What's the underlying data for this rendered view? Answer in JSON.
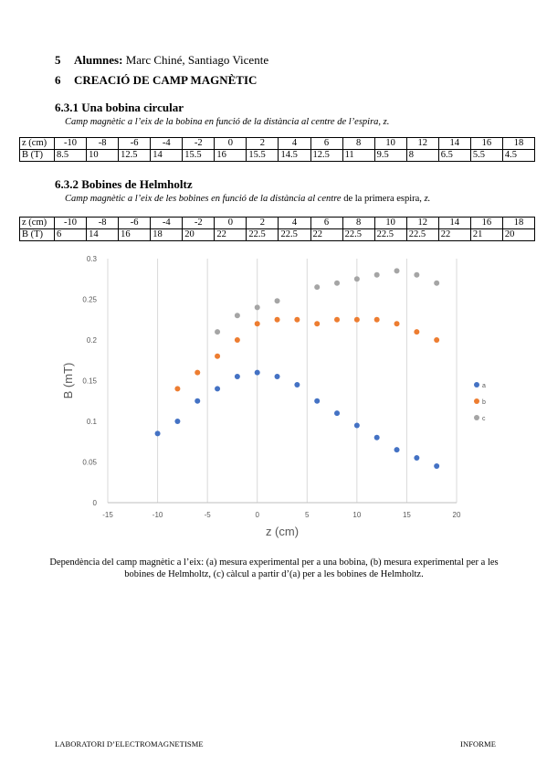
{
  "section5": {
    "number": "5",
    "label": "Alumnes:",
    "names": "Marc Chiné, Santiago Vicente"
  },
  "section6": {
    "number": "6",
    "title": "CREACIÓ DE CAMP MAGNÈTIC"
  },
  "sub1": {
    "heading": "6.3.1 Una bobina circular",
    "caption": "Camp magnètic a l’eix de la bobina en funció de la distància al centre de l’espira, z.",
    "table": {
      "row_labels": [
        "z (cm)",
        "B (T)"
      ],
      "z": [
        "-10",
        "-8",
        "-6",
        "-4",
        "-2",
        "0",
        "2",
        "4",
        "6",
        "8",
        "10",
        "12",
        "14",
        "16",
        "18"
      ],
      "B": [
        "8.5",
        "10",
        "12.5",
        "14",
        "15.5",
        "16",
        "15.5",
        "14.5",
        "12.5",
        "11",
        "9.5",
        "8",
        "6.5",
        "5.5",
        "4.5"
      ]
    }
  },
  "sub2": {
    "heading": "6.3.2 Bobines de Helmholtz",
    "caption_italic": "Camp magnètic a l’eix de les bobines en funció de la distància al centre",
    "caption_rest": " de la primera espira, ",
    "caption_z": "z.",
    "table": {
      "row_labels": [
        "z (cm)",
        "B (T)"
      ],
      "z": [
        "-10",
        "-8",
        "-6",
        "-4",
        "-2",
        "0",
        "2",
        "4",
        "6",
        "8",
        "10",
        "12",
        "14",
        "16",
        "18"
      ],
      "B": [
        "6",
        "14",
        "16",
        "18",
        "20",
        "22",
        "22.5",
        "22.5",
        "22",
        "22.5",
        "22.5",
        "22.5",
        "22",
        "21",
        "20"
      ]
    }
  },
  "chart_data": {
    "type": "scatter",
    "xlabel": "z (cm)",
    "ylabel": "B (mT)",
    "xlim": [
      -15,
      20
    ],
    "ylim": [
      0,
      0.3
    ],
    "x_ticks": [
      "-15",
      "-10",
      "-5",
      "0",
      "5",
      "10",
      "15",
      "20"
    ],
    "y_ticks": [
      "0",
      "0.05",
      "0.1",
      "0.15",
      "0.2",
      "0.25",
      "0.3"
    ],
    "grid": "vertical",
    "legend": "right",
    "series": [
      {
        "name": "a",
        "color": "#4472c4",
        "x": [
          -10,
          -8,
          -6,
          -4,
          -2,
          0,
          2,
          4,
          6,
          8,
          10,
          12,
          14,
          16,
          18
        ],
        "y": [
          0.085,
          0.1,
          0.125,
          0.14,
          0.155,
          0.16,
          0.155,
          0.145,
          0.125,
          0.11,
          0.095,
          0.08,
          0.065,
          0.055,
          0.045
        ]
      },
      {
        "name": "b",
        "color": "#ed7d31",
        "x": [
          -8,
          -6,
          -4,
          -2,
          0,
          2,
          4,
          6,
          8,
          10,
          12,
          14,
          16,
          18
        ],
        "y": [
          0.14,
          0.16,
          0.18,
          0.2,
          0.22,
          0.225,
          0.225,
          0.22,
          0.225,
          0.225,
          0.225,
          0.22,
          0.21,
          0.2
        ]
      },
      {
        "name": "c",
        "color": "#a5a5a5",
        "x": [
          -4,
          -2,
          0,
          2,
          6,
          8,
          10,
          12,
          14,
          16,
          18
        ],
        "y": [
          0.21,
          0.23,
          0.24,
          0.248,
          0.265,
          0.27,
          0.275,
          0.28,
          0.285,
          0.28,
          0.27
        ]
      }
    ]
  },
  "figure_caption": "Dependència del camp magnètic a l’eix: (a) mesura experimental per a una bobina, (b) mesura experimental per a les bobines de Helmholtz, (c) càlcul a partir d’(a) per a les bobines de Helmholtz.",
  "footer": {
    "left": "LABORATORI D’ELECTROMAGNETISME",
    "right": "INFORME"
  }
}
